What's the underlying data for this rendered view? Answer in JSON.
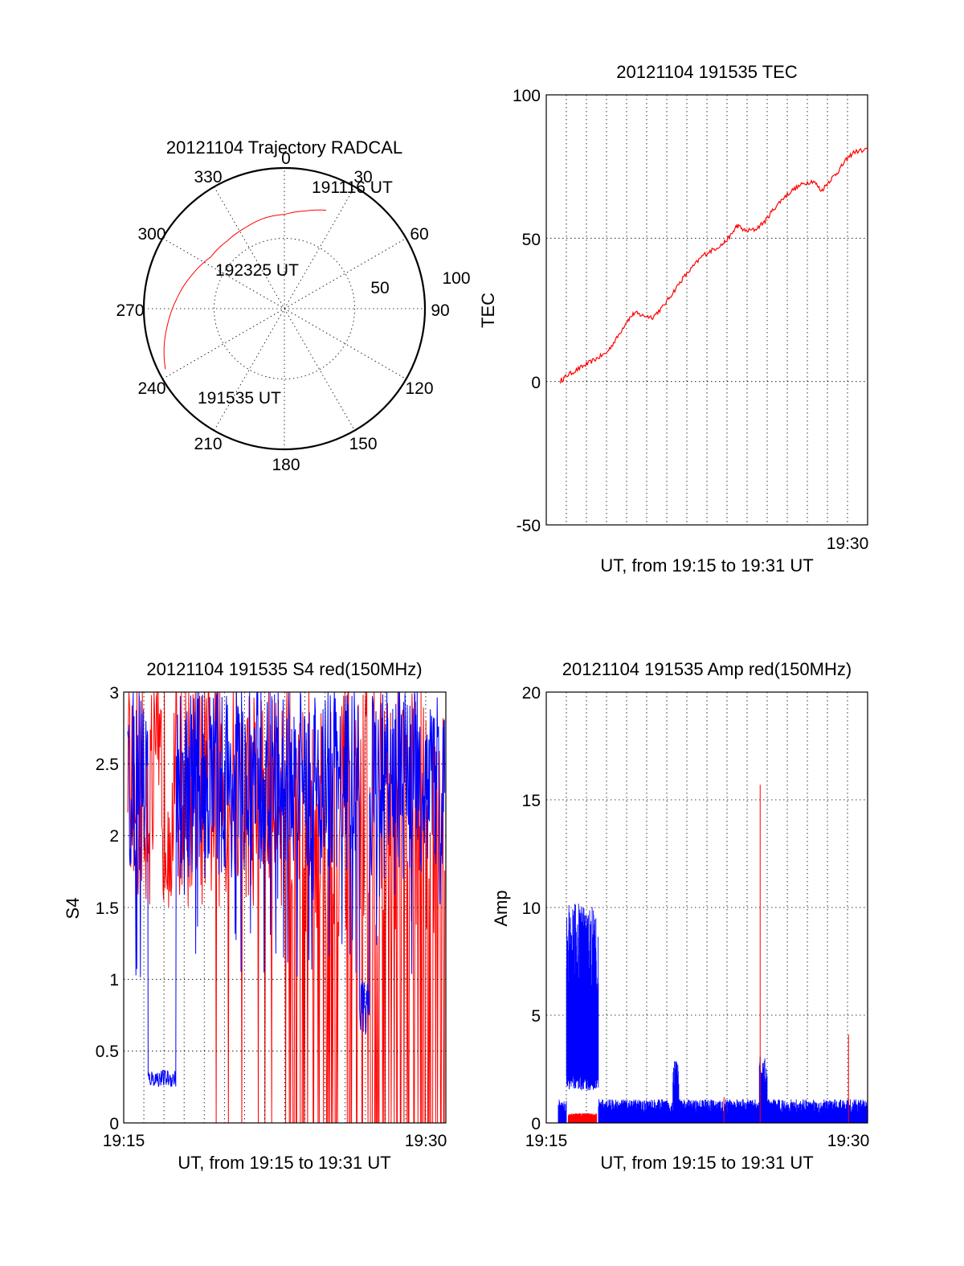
{
  "colors": {
    "red": "#ff0000",
    "blue": "#0000ff",
    "axis": "#000000"
  },
  "chart_data": [
    {
      "id": "trajectory",
      "type": "polar",
      "title": "20121104 Trajectory RADCAL",
      "angle_labels": [
        "0",
        "30",
        "60",
        "90",
        "120",
        "150",
        "180",
        "210",
        "240",
        "270",
        "300",
        "330"
      ],
      "radius_labels": [
        "50",
        "100"
      ],
      "rlim": [
        0,
        100
      ],
      "annotations": [
        "191116 UT",
        "192325 UT",
        "191535 UT"
      ],
      "series": [
        {
          "color": "red",
          "points": [
            {
              "az": 243,
              "r": 95
            },
            {
              "az": 252,
              "r": 90
            },
            {
              "az": 262,
              "r": 84
            },
            {
              "az": 275,
              "r": 77
            },
            {
              "az": 290,
              "r": 70
            },
            {
              "az": 305,
              "r": 64
            },
            {
              "az": 320,
              "r": 63
            },
            {
              "az": 335,
              "r": 64
            },
            {
              "az": 348,
              "r": 66
            },
            {
              "az": 0,
              "r": 67
            },
            {
              "az": 12,
              "r": 71
            },
            {
              "az": 23,
              "r": 76
            }
          ]
        }
      ]
    },
    {
      "id": "tec",
      "type": "line",
      "title": "20121104 191535 TEC",
      "ylabel": "TEC",
      "xlabel": "UT, from 19:15 to 19:31 UT",
      "xlim": [
        15.0,
        31.0
      ],
      "ylim": [
        -50,
        100
      ],
      "yticks": [
        "100",
        "50",
        "0",
        "-50"
      ],
      "xtick_label": "19:30",
      "grid_minutes": [
        16,
        17,
        18,
        19,
        20,
        21,
        22,
        23,
        24,
        25,
        26,
        27,
        28,
        29,
        30,
        31
      ],
      "series": [
        {
          "color": "red",
          "points": [
            [
              15.7,
              0
            ],
            [
              16.0,
              2
            ],
            [
              16.5,
              4
            ],
            [
              17.0,
              6
            ],
            [
              17.5,
              8
            ],
            [
              18.0,
              10
            ],
            [
              18.5,
              15
            ],
            [
              19.0,
              21
            ],
            [
              19.4,
              24
            ],
            [
              19.8,
              23
            ],
            [
              20.3,
              22.5
            ],
            [
              20.8,
              26
            ],
            [
              21.3,
              31
            ],
            [
              21.8,
              36
            ],
            [
              22.3,
              40
            ],
            [
              22.8,
              44
            ],
            [
              23.3,
              46
            ],
            [
              23.8,
              48
            ],
            [
              24.2,
              51
            ],
            [
              24.5,
              54.5
            ],
            [
              24.9,
              52.5
            ],
            [
              25.4,
              53
            ],
            [
              25.9,
              56
            ],
            [
              26.3,
              60
            ],
            [
              26.8,
              64
            ],
            [
              27.3,
              67
            ],
            [
              27.8,
              69
            ],
            [
              28.3,
              70
            ],
            [
              28.7,
              66.5
            ],
            [
              29.1,
              70
            ],
            [
              29.5,
              73
            ],
            [
              29.9,
              77
            ],
            [
              30.3,
              80
            ],
            [
              31.0,
              81
            ]
          ]
        }
      ]
    },
    {
      "id": "s4",
      "type": "line",
      "title": "20121104 191535 S4 red(150MHz)",
      "ylabel": "S4",
      "xlabel": "UT, from 19:15 to 19:31 UT",
      "xlim": [
        15.0,
        31.0
      ],
      "ylim": [
        0,
        3
      ],
      "yticks": [
        "3",
        "2.5",
        "2",
        "1.5",
        "1",
        "0.5",
        "0"
      ],
      "xtick_labels": [
        "19:15",
        "19:30"
      ],
      "grid_minutes": [
        16,
        17,
        18,
        19,
        20,
        21,
        22,
        23,
        24,
        25,
        26,
        27,
        28,
        29,
        30
      ],
      "series": [
        {
          "color": "red",
          "name": "",
          "summary": "S4 values mostly between ~1.5 and 3 before 19:23, then frequent drops to 0 after 19:23"
        },
        {
          "color": "blue",
          "name": "",
          "summary": "S4 ~0.25-0.35 from 19:16 to 19:17, otherwise mostly 1.5-3 with dips"
        }
      ]
    },
    {
      "id": "amp",
      "type": "line",
      "title": "20121104 191535 Amp red(150MHz)",
      "ylabel": "Amp",
      "xlabel": "UT, from 19:15 to 19:31 UT",
      "xlim": [
        15.0,
        31.0
      ],
      "ylim": [
        0,
        20
      ],
      "yticks": [
        "20",
        "15",
        "10",
        "5",
        "0"
      ],
      "xtick_labels": [
        "19:15",
        "19:30"
      ],
      "grid_minutes": [
        16,
        17,
        18,
        19,
        20,
        21,
        22,
        23,
        24,
        25,
        26,
        27,
        28,
        29,
        30
      ],
      "series": [
        {
          "color": "blue",
          "name": "",
          "summary": "Amplitude ~2-10 between 19:16 and 19:17.5, ~0.3-1 elsewhere, bursts to ~3 near 19:21.5 and 19:25.5"
        },
        {
          "color": "red",
          "name": "",
          "summary": "Amplitude near 0.3 between 19:16 and 19:17.5, spikes to ~15.7 near 19:25.6 and ~4.1 near 19:30.0"
        }
      ]
    }
  ]
}
